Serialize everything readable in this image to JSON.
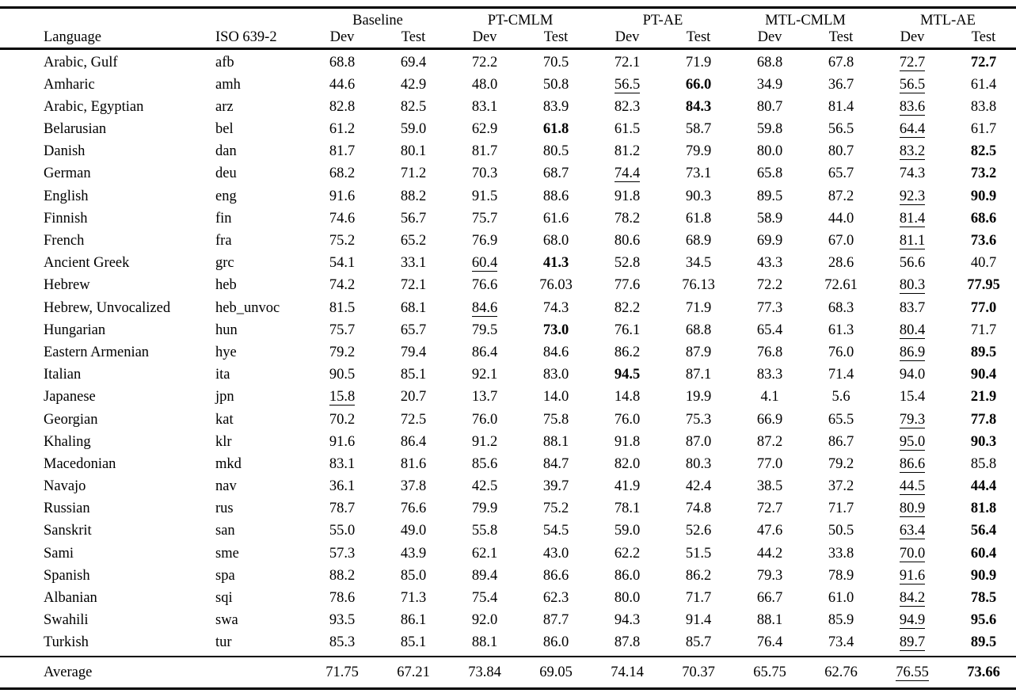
{
  "table": {
    "header": {
      "language": "Language",
      "iso": "ISO 639-2",
      "dev": "Dev",
      "test": "Test",
      "groups": [
        {
          "label": "Baseline"
        },
        {
          "label": "PT-CMLM"
        },
        {
          "label": "PT-AE"
        },
        {
          "label": "MTL-CMLM"
        },
        {
          "label": "MTL-AE"
        }
      ]
    },
    "rows": [
      {
        "language": "Arabic, Gulf",
        "iso": "afb",
        "values": [
          "68.8",
          "69.4",
          "72.2",
          "70.5",
          "72.1",
          "71.9",
          "68.8",
          "67.8",
          "72.7",
          "72.7"
        ],
        "fmt": [
          "",
          "",
          "",
          "",
          "",
          "",
          "",
          "",
          "u",
          "b"
        ]
      },
      {
        "language": "Amharic",
        "iso": "amh",
        "values": [
          "44.6",
          "42.9",
          "48.0",
          "50.8",
          "56.5",
          "66.0",
          "34.9",
          "36.7",
          "56.5",
          "61.4"
        ],
        "fmt": [
          "",
          "",
          "",
          "",
          "u",
          "b",
          "",
          "",
          "u",
          ""
        ]
      },
      {
        "language": "Arabic, Egyptian",
        "iso": "arz",
        "values": [
          "82.8",
          "82.5",
          "83.1",
          "83.9",
          "82.3",
          "84.3",
          "80.7",
          "81.4",
          "83.6",
          "83.8"
        ],
        "fmt": [
          "",
          "",
          "",
          "",
          "",
          "b",
          "",
          "",
          "u",
          ""
        ]
      },
      {
        "language": "Belarusian",
        "iso": "bel",
        "values": [
          "61.2",
          "59.0",
          "62.9",
          "61.8",
          "61.5",
          "58.7",
          "59.8",
          "56.5",
          "64.4",
          "61.7"
        ],
        "fmt": [
          "",
          "",
          "",
          "b",
          "",
          "",
          "",
          "",
          "u",
          ""
        ]
      },
      {
        "language": "Danish",
        "iso": "dan",
        "values": [
          "81.7",
          "80.1",
          "81.7",
          "80.5",
          "81.2",
          "79.9",
          "80.0",
          "80.7",
          "83.2",
          "82.5"
        ],
        "fmt": [
          "",
          "",
          "",
          "",
          "",
          "",
          "",
          "",
          "u",
          "b"
        ]
      },
      {
        "language": "German",
        "iso": "deu",
        "values": [
          "68.2",
          "71.2",
          "70.3",
          "68.7",
          "74.4",
          "73.1",
          "65.8",
          "65.7",
          "74.3",
          "73.2"
        ],
        "fmt": [
          "",
          "",
          "",
          "",
          "u",
          "",
          "",
          "",
          "",
          "b"
        ]
      },
      {
        "language": "English",
        "iso": "eng",
        "values": [
          "91.6",
          "88.2",
          "91.5",
          "88.6",
          "91.8",
          "90.3",
          "89.5",
          "87.2",
          "92.3",
          "90.9"
        ],
        "fmt": [
          "",
          "",
          "",
          "",
          "",
          "",
          "",
          "",
          "u",
          "b"
        ]
      },
      {
        "language": "Finnish",
        "iso": "fin",
        "values": [
          "74.6",
          "56.7",
          "75.7",
          "61.6",
          "78.2",
          "61.8",
          "58.9",
          "44.0",
          "81.4",
          "68.6"
        ],
        "fmt": [
          "",
          "",
          "",
          "",
          "",
          "",
          "",
          "",
          "u",
          "b"
        ]
      },
      {
        "language": "French",
        "iso": "fra",
        "values": [
          "75.2",
          "65.2",
          "76.9",
          "68.0",
          "80.6",
          "68.9",
          "69.9",
          "67.0",
          "81.1",
          "73.6"
        ],
        "fmt": [
          "",
          "",
          "",
          "",
          "",
          "",
          "",
          "",
          "u",
          "b"
        ]
      },
      {
        "language": "Ancient Greek",
        "iso": "grc",
        "values": [
          "54.1",
          "33.1",
          "60.4",
          "41.3",
          "52.8",
          "34.5",
          "43.3",
          "28.6",
          "56.6",
          "40.7"
        ],
        "fmt": [
          "",
          "",
          "u",
          "b",
          "",
          "",
          "",
          "",
          "",
          ""
        ]
      },
      {
        "language": "Hebrew",
        "iso": "heb",
        "values": [
          "74.2",
          "72.1",
          "76.6",
          "76.03",
          "77.6",
          "76.13",
          "72.2",
          "72.61",
          "80.3",
          "77.95"
        ],
        "fmt": [
          "",
          "",
          "",
          "",
          "",
          "",
          "",
          "",
          "u",
          "b"
        ]
      },
      {
        "language": "Hebrew, Unvocalized",
        "iso": "heb_unvoc",
        "values": [
          "81.5",
          "68.1",
          "84.6",
          "74.3",
          "82.2",
          "71.9",
          "77.3",
          "68.3",
          "83.7",
          "77.0"
        ],
        "fmt": [
          "",
          "",
          "u",
          "",
          "",
          "",
          "",
          "",
          "",
          "b"
        ]
      },
      {
        "language": "Hungarian",
        "iso": "hun",
        "values": [
          "75.7",
          "65.7",
          "79.5",
          "73.0",
          "76.1",
          "68.8",
          "65.4",
          "61.3",
          "80.4",
          "71.7"
        ],
        "fmt": [
          "",
          "",
          "",
          "b",
          "",
          "",
          "",
          "",
          "u",
          ""
        ]
      },
      {
        "language": "Eastern Armenian",
        "iso": "hye",
        "values": [
          "79.2",
          "79.4",
          "86.4",
          "84.6",
          "86.2",
          "87.9",
          "76.8",
          "76.0",
          "86.9",
          "89.5"
        ],
        "fmt": [
          "",
          "",
          "",
          "",
          "",
          "",
          "",
          "",
          "u",
          "b"
        ]
      },
      {
        "language": "Italian",
        "iso": "ita",
        "values": [
          "90.5",
          "85.1",
          "92.1",
          "83.0",
          "94.5",
          "87.1",
          "83.3",
          "71.4",
          "94.0",
          "90.4"
        ],
        "fmt": [
          "",
          "",
          "",
          "",
          "b",
          "",
          "",
          "",
          "",
          "b"
        ]
      },
      {
        "language": "Japanese",
        "iso": "jpn",
        "values": [
          "15.8",
          "20.7",
          "13.7",
          "14.0",
          "14.8",
          "19.9",
          "4.1",
          "5.6",
          "15.4",
          "21.9"
        ],
        "fmt": [
          "u",
          "",
          "",
          "",
          "",
          "",
          "",
          "",
          "",
          "b"
        ]
      },
      {
        "language": "Georgian",
        "iso": "kat",
        "values": [
          "70.2",
          "72.5",
          "76.0",
          "75.8",
          "76.0",
          "75.3",
          "66.9",
          "65.5",
          "79.3",
          "77.8"
        ],
        "fmt": [
          "",
          "",
          "",
          "",
          "",
          "",
          "",
          "",
          "u",
          "b"
        ]
      },
      {
        "language": "Khaling",
        "iso": "klr",
        "values": [
          "91.6",
          "86.4",
          "91.2",
          "88.1",
          "91.8",
          "87.0",
          "87.2",
          "86.7",
          "95.0",
          "90.3"
        ],
        "fmt": [
          "",
          "",
          "",
          "",
          "",
          "",
          "",
          "",
          "u",
          "b"
        ]
      },
      {
        "language": "Macedonian",
        "iso": "mkd",
        "values": [
          "83.1",
          "81.6",
          "85.6",
          "84.7",
          "82.0",
          "80.3",
          "77.0",
          "79.2",
          "86.6",
          "85.8"
        ],
        "fmt": [
          "",
          "",
          "",
          "",
          "",
          "",
          "",
          "",
          "u",
          ""
        ]
      },
      {
        "language": "Navajo",
        "iso": "nav",
        "values": [
          "36.1",
          "37.8",
          "42.5",
          "39.7",
          "41.9",
          "42.4",
          "38.5",
          "37.2",
          "44.5",
          "44.4"
        ],
        "fmt": [
          "",
          "",
          "",
          "",
          "",
          "",
          "",
          "",
          "u",
          "b"
        ]
      },
      {
        "language": "Russian",
        "iso": "rus",
        "values": [
          "78.7",
          "76.6",
          "79.9",
          "75.2",
          "78.1",
          "74.8",
          "72.7",
          "71.7",
          "80.9",
          "81.8"
        ],
        "fmt": [
          "",
          "",
          "",
          "",
          "",
          "",
          "",
          "",
          "u",
          "b"
        ]
      },
      {
        "language": "Sanskrit",
        "iso": "san",
        "values": [
          "55.0",
          "49.0",
          "55.8",
          "54.5",
          "59.0",
          "52.6",
          "47.6",
          "50.5",
          "63.4",
          "56.4"
        ],
        "fmt": [
          "",
          "",
          "",
          "",
          "",
          "",
          "",
          "",
          "u",
          "b"
        ]
      },
      {
        "language": "Sami",
        "iso": "sme",
        "values": [
          "57.3",
          "43.9",
          "62.1",
          "43.0",
          "62.2",
          "51.5",
          "44.2",
          "33.8",
          "70.0",
          "60.4"
        ],
        "fmt": [
          "",
          "",
          "",
          "",
          "",
          "",
          "",
          "",
          "u",
          "b"
        ]
      },
      {
        "language": "Spanish",
        "iso": "spa",
        "values": [
          "88.2",
          "85.0",
          "89.4",
          "86.6",
          "86.0",
          "86.2",
          "79.3",
          "78.9",
          "91.6",
          "90.9"
        ],
        "fmt": [
          "",
          "",
          "",
          "",
          "",
          "",
          "",
          "",
          "u",
          "b"
        ]
      },
      {
        "language": "Albanian",
        "iso": "sqi",
        "values": [
          "78.6",
          "71.3",
          "75.4",
          "62.3",
          "80.0",
          "71.7",
          "66.7",
          "61.0",
          "84.2",
          "78.5"
        ],
        "fmt": [
          "",
          "",
          "",
          "",
          "",
          "",
          "",
          "",
          "u",
          "b"
        ]
      },
      {
        "language": "Swahili",
        "iso": "swa",
        "values": [
          "93.5",
          "86.1",
          "92.0",
          "87.7",
          "94.3",
          "91.4",
          "88.1",
          "85.9",
          "94.9",
          "95.6"
        ],
        "fmt": [
          "",
          "",
          "",
          "",
          "",
          "",
          "",
          "",
          "u",
          "b"
        ]
      },
      {
        "language": "Turkish",
        "iso": "tur",
        "values": [
          "85.3",
          "85.1",
          "88.1",
          "86.0",
          "87.8",
          "85.7",
          "76.4",
          "73.4",
          "89.7",
          "89.5"
        ],
        "fmt": [
          "",
          "",
          "",
          "",
          "",
          "",
          "",
          "",
          "u",
          "b"
        ]
      }
    ],
    "average": {
      "label": "Average",
      "values": [
        "71.75",
        "67.21",
        "73.84",
        "69.05",
        "74.14",
        "70.37",
        "65.75",
        "62.76",
        "76.55",
        "73.66"
      ],
      "fmt": [
        "",
        "",
        "",
        "",
        "",
        "",
        "",
        "",
        "u",
        "b"
      ]
    }
  }
}
